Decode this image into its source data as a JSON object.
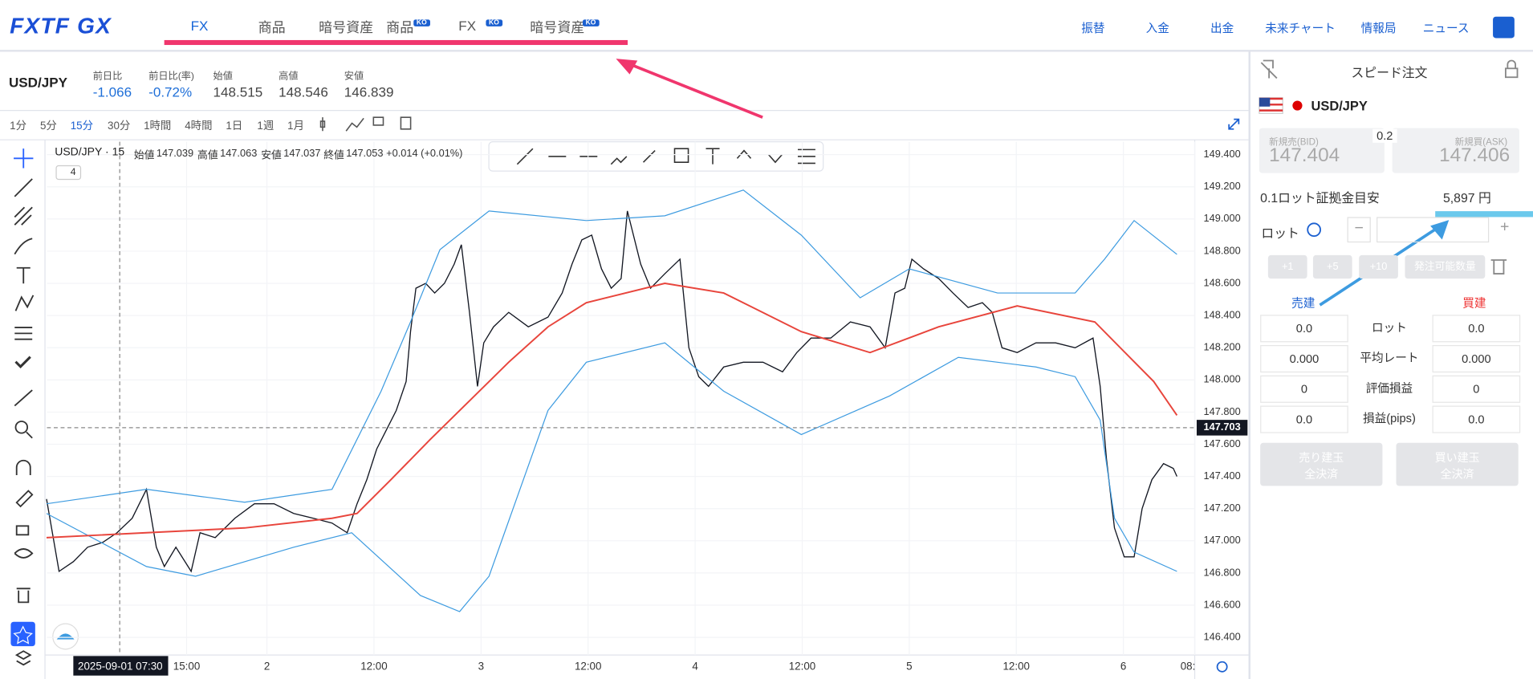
{
  "header": {
    "logo": "FXTF GX",
    "nav": [
      {
        "label": "FX"
      },
      {
        "label": "商品"
      },
      {
        "label": "暗号資産"
      },
      {
        "label": "商品",
        "badge": "KO"
      },
      {
        "label": "FX",
        "badge": "KO"
      },
      {
        "label": "暗号資産",
        "badge": "KO"
      }
    ],
    "links": [
      "振替",
      "入金",
      "出金",
      "未来チャート",
      "情報局",
      "ニュース"
    ]
  },
  "quote": {
    "pair": "USD/JPY",
    "fields": [
      {
        "label": "前日比",
        "value": "-1.066"
      },
      {
        "label": "前日比(率)",
        "value": "-0.72%"
      },
      {
        "label": "始値",
        "value": "148.515"
      },
      {
        "label": "高値",
        "value": "148.546"
      },
      {
        "label": "安値",
        "value": "146.839"
      }
    ]
  },
  "timeframes": [
    "1分",
    "5分",
    "15分",
    "30分",
    "1時間",
    "4時間",
    "1日",
    "1週",
    "1月"
  ],
  "active_timeframe": 2,
  "chart_data": {
    "type": "line",
    "symbol": "USD/JPY · 15",
    "ohlc": [
      {
        "label": "始値",
        "value": "147.039"
      },
      {
        "label": "高値",
        "value": "147.063"
      },
      {
        "label": "安値",
        "value": "147.037"
      },
      {
        "label": "終値",
        "value": "147.053"
      }
    ],
    "change": "+0.014 (+0.01%)",
    "indicator_count": "4",
    "xlim": [
      -24.66,
      104
    ],
    "ylim": [
      146.29,
      149.48
    ],
    "grid": true,
    "xticks": [
      {
        "value": -9,
        "label": "15:00"
      },
      {
        "value": 0,
        "label": "2"
      },
      {
        "value": 12,
        "label": "12:00"
      },
      {
        "value": 24,
        "label": "3"
      },
      {
        "value": 36,
        "label": "12:00"
      },
      {
        "value": 48,
        "label": "4"
      },
      {
        "value": 60,
        "label": "12:00"
      },
      {
        "value": 72,
        "label": "5"
      },
      {
        "value": 84,
        "label": "12:00"
      },
      {
        "value": 96,
        "label": "6"
      },
      {
        "value": 104,
        "label": "08:"
      }
    ],
    "yticks": [
      {
        "value": 149.4,
        "label": "149.400"
      },
      {
        "value": 149.2,
        "label": "149.200"
      },
      {
        "value": 149,
        "label": "149.000"
      },
      {
        "value": 148.8,
        "label": "148.800"
      },
      {
        "value": 148.6,
        "label": "148.600"
      },
      {
        "value": 148.4,
        "label": "148.400"
      },
      {
        "value": 148.2,
        "label": "148.200"
      },
      {
        "value": 148,
        "label": "148.000"
      },
      {
        "value": 147.8,
        "label": "147.800"
      },
      {
        "value": 147.6,
        "label": "147.600"
      },
      {
        "value": 147.4,
        "label": "147.400"
      },
      {
        "value": 147.2,
        "label": "147.200"
      },
      {
        "value": 147,
        "label": "147.000"
      },
      {
        "value": 146.8,
        "label": "146.800"
      },
      {
        "value": 146.6,
        "label": "146.600"
      },
      {
        "value": 146.4,
        "label": "146.400"
      }
    ],
    "price_line": {
      "value": 147.703,
      "label": "147.703"
    },
    "crosshair": {
      "value": -16.5,
      "label": "2025-09-01 07:30"
    },
    "series": [
      {
        "color": "#131722",
        "x": [
          -24.7,
          -23.3,
          -21.7,
          -20.1,
          -18.4,
          -16.8,
          -15.1,
          -13.5,
          -12.4,
          -11.5,
          -10.2,
          -8.5,
          -7.5,
          -5.8,
          -3.6,
          -1.4,
          0.8,
          3.0,
          5.2,
          7.3,
          9.0,
          10.1,
          11.2,
          12.3,
          13.4,
          14.5,
          15.6,
          16.1,
          16.7,
          17.8,
          18.8,
          19.9,
          21.0,
          21.8,
          22.7,
          23.6,
          24.3,
          25.4,
          27.1,
          29.3,
          31.5,
          33.1,
          34.2,
          35.3,
          36.4,
          37.5,
          38.6,
          39.7,
          40.4,
          41.9,
          43.0,
          44.6,
          46.3,
          47.3,
          48.4,
          49.5,
          51.2,
          53.4,
          55.6,
          57.8,
          59.4,
          61.0,
          63.2,
          65.4,
          67.6,
          69.3,
          70.4,
          71.5,
          72.3,
          73.6,
          75.3,
          76.9,
          78.6,
          80.2,
          81.3,
          82.4,
          84.1,
          86.2,
          88.4,
          90.6,
          92.6,
          93.4,
          94.1,
          95.0,
          96.1,
          97.2,
          98.1,
          99.2,
          100.5,
          101.6,
          102.0
        ],
        "values": [
          147.26,
          146.81,
          146.87,
          146.96,
          146.99,
          147.05,
          147.14,
          147.32,
          146.96,
          146.84,
          146.96,
          146.81,
          147.05,
          147.02,
          147.14,
          147.23,
          147.23,
          147.17,
          147.14,
          147.11,
          147.05,
          147.23,
          147.38,
          147.57,
          147.69,
          147.81,
          147.99,
          148.3,
          148.57,
          148.6,
          148.54,
          148.6,
          148.72,
          148.84,
          148.42,
          147.96,
          148.23,
          148.33,
          148.42,
          148.33,
          148.39,
          148.54,
          148.72,
          148.87,
          148.9,
          148.69,
          148.57,
          148.63,
          149.05,
          148.72,
          148.57,
          148.66,
          148.75,
          148.2,
          148.02,
          147.96,
          148.08,
          148.11,
          148.11,
          148.05,
          148.17,
          148.26,
          148.26,
          148.36,
          148.33,
          148.2,
          148.54,
          148.57,
          148.75,
          148.69,
          148.63,
          148.54,
          148.45,
          148.48,
          148.42,
          148.2,
          148.17,
          148.23,
          148.23,
          148.2,
          148.26,
          147.96,
          147.51,
          147.08,
          146.9,
          146.9,
          147.2,
          147.38,
          147.48,
          147.45,
          147.4
        ]
      },
      {
        "color": "#3d9be0",
        "x": [
          -24.7,
          -13.5,
          -2.5,
          7.3,
          12.8,
          16.1,
          19.4,
          24.9,
          35.8,
          44.6,
          53.4,
          59.9,
          66.5,
          72.0,
          81.9,
          90.6,
          93.9,
          97.2,
          102.0
        ],
        "values": [
          147.23,
          147.32,
          147.24,
          147.32,
          147.93,
          148.36,
          148.81,
          149.05,
          148.99,
          149.02,
          149.18,
          148.9,
          148.51,
          148.69,
          148.54,
          148.54,
          148.75,
          148.99,
          148.78
        ]
      },
      {
        "color": "#3d9be0",
        "x": [
          -24.7,
          -13.5,
          -8.0,
          3.0,
          9.5,
          17.2,
          21.6,
          24.9,
          31.5,
          35.8,
          44.6,
          51.2,
          59.9,
          69.8,
          77.5,
          86.2,
          90.6,
          93.4,
          95.0,
          97.2,
          102.0
        ],
        "values": [
          147.17,
          146.84,
          146.78,
          146.96,
          147.05,
          146.66,
          146.56,
          146.78,
          147.81,
          148.11,
          148.23,
          147.93,
          147.66,
          147.9,
          148.14,
          148.08,
          148.02,
          147.75,
          147.14,
          146.93,
          146.81
        ]
      },
      {
        "color": "#e8453c",
        "x": [
          -24.7,
          -13.5,
          -2.5,
          7.3,
          10.1,
          13.9,
          18.3,
          22.7,
          27.1,
          31.5,
          35.8,
          44.6,
          51.2,
          59.9,
          67.6,
          75.3,
          84.1,
          92.8,
          99.4,
          102.0
        ],
        "values": [
          147.02,
          147.05,
          147.08,
          147.14,
          147.17,
          147.38,
          147.63,
          147.87,
          148.11,
          148.33,
          148.48,
          148.6,
          148.54,
          148.3,
          148.17,
          148.33,
          148.46,
          148.36,
          147.99,
          147.78
        ]
      }
    ]
  },
  "order": {
    "title": "スピード注文",
    "pair": "USD/JPY",
    "bid_label": "新規売(BID)",
    "bid": "147.404",
    "spread": "0.2",
    "ask_label": "新規買(ASK)",
    "ask": "147.406",
    "margin_label": "0.1ロット証拠金目安",
    "margin": "5,897 円",
    "lot_label": "ロット",
    "lot_buttons": [
      "+1",
      "+5",
      "+10",
      "発注可能数量"
    ],
    "sell_label": "売建",
    "buy_label": "買建",
    "rows": [
      [
        "0.0",
        "ロット",
        "0.0"
      ],
      [
        "0.000",
        "平均レート",
        "0.000"
      ],
      [
        "0",
        "評価損益",
        "0"
      ],
      [
        "0.0",
        "損益(pips)",
        "0.0"
      ]
    ],
    "close_buttons": [
      [
        "売り建玉",
        "全決済"
      ],
      [
        "買い建玉",
        "全決済"
      ]
    ]
  }
}
